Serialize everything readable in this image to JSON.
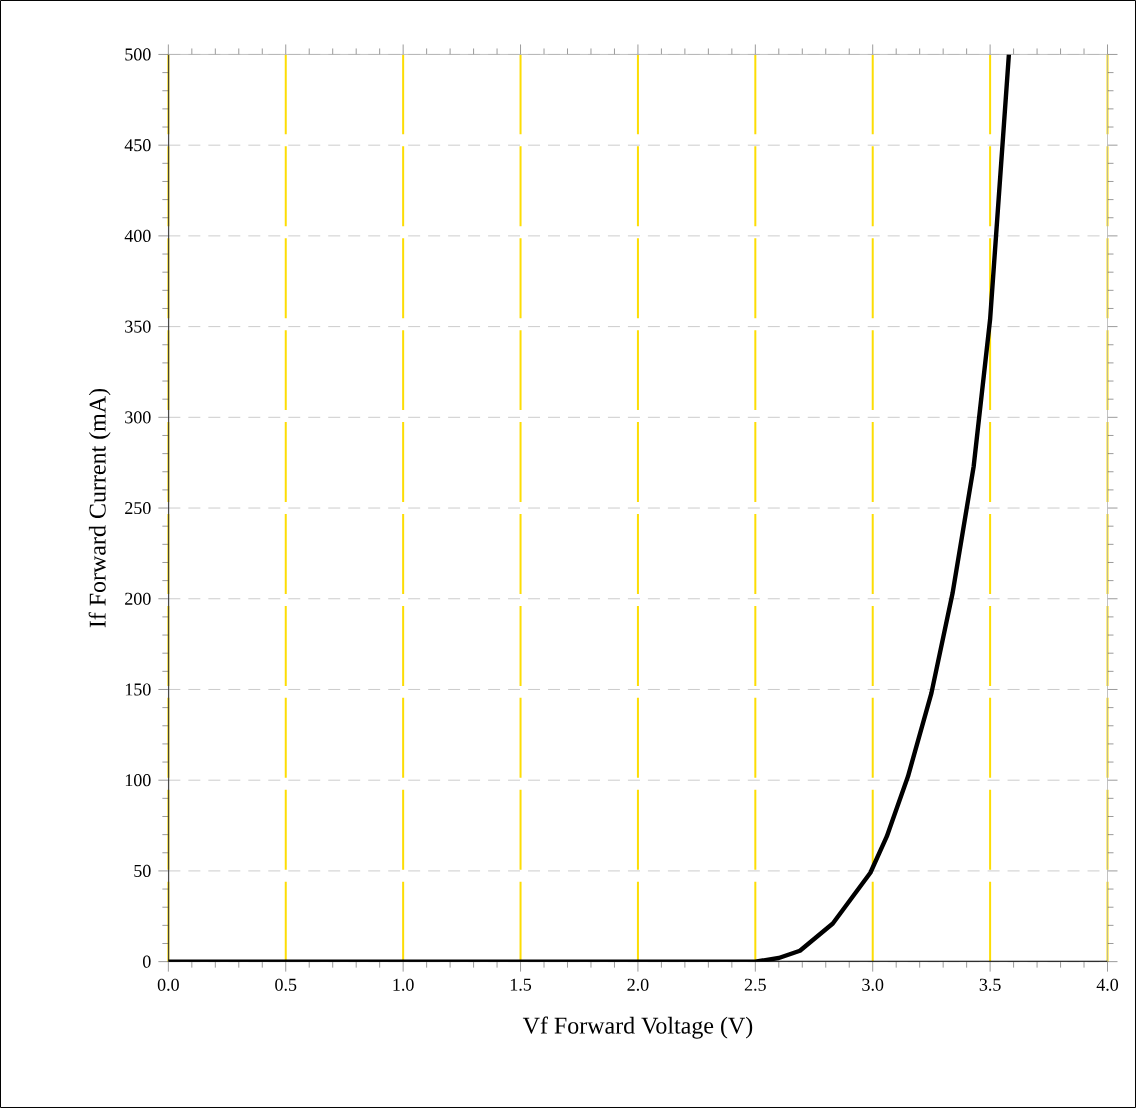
{
  "chart_data": {
    "type": "line",
    "xlabel": "Vf Forward Voltage (V)",
    "ylabel": "If Forward Current (mA)",
    "x": [
      0,
      0.5,
      1.0,
      1.5,
      2.0,
      2.5,
      2.6,
      2.69,
      2.83,
      2.99,
      3.06,
      3.15,
      3.25,
      3.34,
      3.43,
      3.5,
      3.58
    ],
    "series": [
      {
        "color": "#000000",
        "values": [
          0,
          0,
          0,
          0,
          0,
          0,
          2,
          6,
          21,
          49,
          69,
          102,
          148,
          203,
          273,
          354,
          500
        ]
      }
    ],
    "xlim": [
      0,
      4
    ],
    "ylim": [
      0,
      500
    ],
    "xticks": [
      {
        "value": 0,
        "label": "0.0"
      },
      0.5,
      {
        "value": 1,
        "label": "1.0"
      },
      1.5,
      {
        "value": 2,
        "label": "2.0"
      },
      2.5,
      {
        "value": 3,
        "label": "3.0"
      },
      3.5,
      {
        "value": 4,
        "label": "4.0"
      }
    ],
    "yticks": [
      0,
      50,
      100,
      150,
      200,
      250,
      300,
      350,
      400,
      450,
      500
    ],
    "grid": true,
    "marker": "none",
    "line_style": "solid"
  }
}
